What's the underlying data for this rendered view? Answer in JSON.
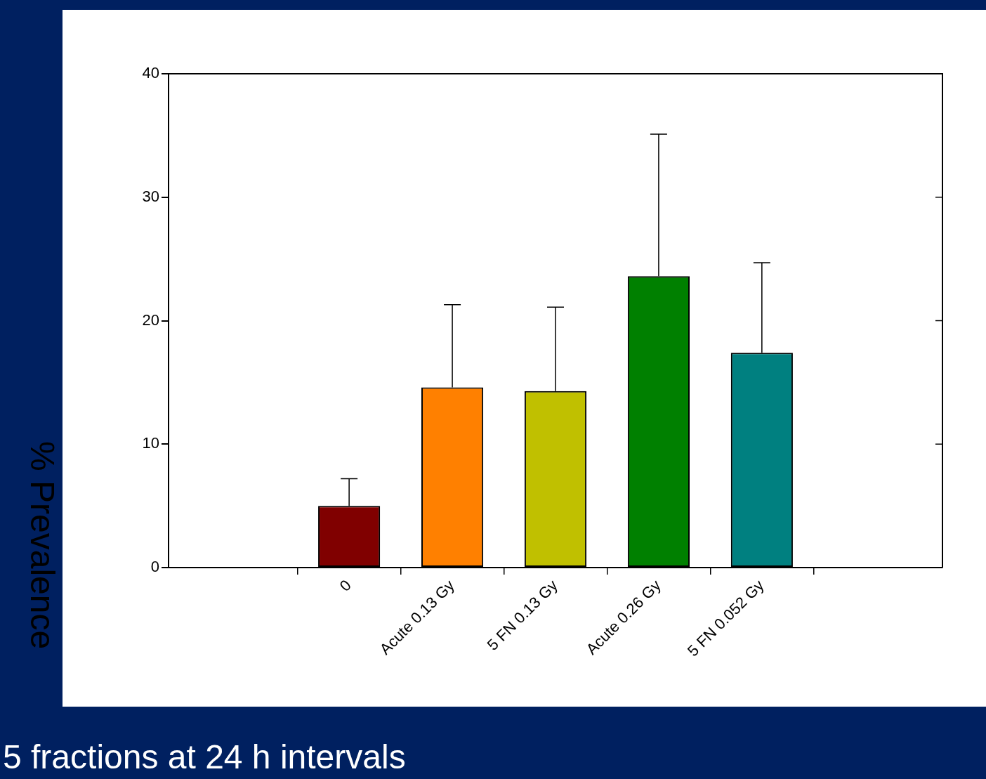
{
  "chart_data": {
    "type": "bar",
    "ylabel": "% Prevalence",
    "annotations": [
      "5 fractions at 24 h intervals"
    ],
    "categories": [
      "0",
      "Acute 0.13 Gy",
      "5 FN 0.13 Gy",
      "Acute 0.26 Gy",
      "5 FN 0.052 Gy"
    ],
    "values": [
      5.0,
      14.6,
      14.3,
      23.6,
      17.4
    ],
    "colors": [
      "#800000",
      "#ff8000",
      "#c0c000",
      "#008000",
      "#008080"
    ],
    "errors": [
      [
        5.0,
        7.2
      ],
      [
        14.6,
        21.3
      ],
      [
        14.3,
        21.1
      ],
      [
        23.6,
        35.1
      ],
      [
        17.4,
        24.7
      ]
    ],
    "ylim": [
      0,
      40
    ],
    "yticks": [
      0,
      10,
      20,
      30,
      40
    ]
  }
}
